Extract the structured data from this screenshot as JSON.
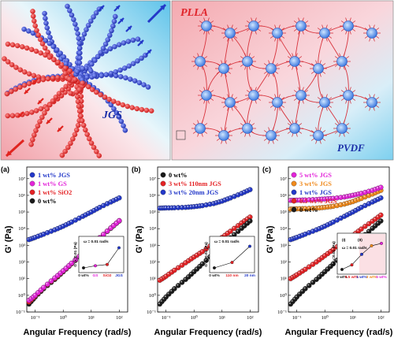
{
  "figure": {
    "schematic": {
      "left_label": "JGS",
      "right_top_label": "PLLA",
      "right_bottom_label": "PVDF"
    },
    "y_axis_title": "G' (Pa)",
    "x_axis_title": "Angular Frequency (rad/s)"
  },
  "colors": {
    "black": "#1a1a1a",
    "red": "#e42225",
    "blue": "#2338c9",
    "magenta": "#e324d9",
    "orange": "#f08a1c",
    "schematic_blue": "#2438c8",
    "schematic_red": "#e0241f"
  },
  "chart_data": [
    {
      "type": "scatter",
      "panel": "(a)",
      "x_scale": "log",
      "y_scale": "log",
      "xlabel": "Angular Frequency (rad/s)",
      "ylabel": "G' (Pa)",
      "xlim": [
        0.05,
        200
      ],
      "ylim": [
        0.1,
        50000000
      ],
      "x_ticks": [
        "10⁻¹",
        "10⁰",
        "10¹",
        "10²"
      ],
      "y_ticks": [
        "10⁻¹",
        "10⁰",
        "10¹",
        "10²",
        "10³",
        "10⁴",
        "10⁵",
        "10⁶",
        "10⁷"
      ],
      "series": [
        {
          "name": "1 wt% JGS",
          "color": "blue",
          "points": [
            [
              0.06,
              2200
            ],
            [
              0.1,
              3000
            ],
            [
              0.2,
              4700
            ],
            [
              0.5,
              8500
            ],
            [
              1,
              14000
            ],
            [
              2,
              25000
            ],
            [
              5,
              55000
            ],
            [
              10,
              100000
            ],
            [
              20,
              190000
            ],
            [
              50,
              400000
            ],
            [
              100,
              700000
            ]
          ]
        },
        {
          "name": "1 wt% GS",
          "color": "magenta",
          "points": [
            [
              0.06,
              0.5
            ],
            [
              0.1,
              1
            ],
            [
              0.2,
              3
            ],
            [
              0.5,
              11
            ],
            [
              1,
              30
            ],
            [
              2,
              85
            ],
            [
              5,
              340
            ],
            [
              10,
              1000
            ],
            [
              20,
              2900
            ],
            [
              50,
              11000
            ],
            [
              100,
              30000
            ]
          ]
        },
        {
          "name": "1 wt% SiO2",
          "color": "red",
          "points": [
            [
              0.06,
              0.4
            ],
            [
              0.1,
              0.9
            ],
            [
              0.2,
              2.8
            ],
            [
              0.5,
              10
            ],
            [
              1,
              28
            ],
            [
              2,
              80
            ],
            [
              5,
              330
            ],
            [
              10,
              980
            ],
            [
              20,
              2800
            ],
            [
              50,
              11000
            ],
            [
              100,
              30000
            ]
          ]
        },
        {
          "name": "0 wt%",
          "color": "black",
          "points": [
            [
              0.06,
              0.3
            ],
            [
              0.1,
              0.8
            ],
            [
              0.2,
              2.5
            ],
            [
              0.5,
              9
            ],
            [
              1,
              26
            ],
            [
              2,
              78
            ],
            [
              5,
              320
            ],
            [
              10,
              950
            ],
            [
              20,
              2800
            ],
            [
              50,
              10500
            ],
            [
              100,
              29000
            ]
          ]
        }
      ],
      "inset": {
        "label": "ω = 0.01 rad/s",
        "ylabel": "G'ω=0.01 (Pa)",
        "categories": [
          "0 wt%",
          "GS",
          "SiO2",
          "JGS"
        ],
        "category_colors": [
          "black",
          "magenta",
          "red",
          "blue"
        ],
        "values": [
          1,
          2,
          3,
          700
        ]
      }
    },
    {
      "type": "scatter",
      "panel": "(b)",
      "x_scale": "log",
      "y_scale": "log",
      "xlabel": "Angular Frequency (rad/s)",
      "ylabel": "G' (Pa)",
      "xlim": [
        0.05,
        200
      ],
      "ylim": [
        0.1,
        50000000
      ],
      "x_ticks": [
        "10⁻¹",
        "10⁰",
        "10¹",
        "10²"
      ],
      "y_ticks": [
        "10⁻¹",
        "10⁰",
        "10¹",
        "10²",
        "10³",
        "10⁴",
        "10⁵",
        "10⁶",
        "10⁷"
      ],
      "series": [
        {
          "name": "0 wt%",
          "color": "black",
          "points": [
            [
              0.06,
              0.3
            ],
            [
              0.1,
              0.8
            ],
            [
              0.2,
              2.5
            ],
            [
              0.5,
              9
            ],
            [
              1,
              26
            ],
            [
              2,
              78
            ],
            [
              5,
              320
            ],
            [
              10,
              950
            ],
            [
              20,
              2800
            ],
            [
              50,
              10500
            ],
            [
              100,
              29000
            ]
          ]
        },
        {
          "name": "3 wt% 110nm JGS",
          "color": "red",
          "points": [
            [
              0.06,
              8
            ],
            [
              0.1,
              14
            ],
            [
              0.2,
              32
            ],
            [
              0.5,
              90
            ],
            [
              1,
              200
            ],
            [
              2,
              420
            ],
            [
              5,
              1300
            ],
            [
              10,
              3000
            ],
            [
              20,
              7000
            ],
            [
              50,
              22000
            ],
            [
              100,
              50000
            ]
          ]
        },
        {
          "name": "3 wt% 20nm JGS",
          "color": "blue",
          "points": [
            [
              0.06,
              170000
            ],
            [
              0.1,
              175000
            ],
            [
              0.2,
              180000
            ],
            [
              0.5,
              190000
            ],
            [
              1,
              210000
            ],
            [
              2,
              240000
            ],
            [
              5,
              320000
            ],
            [
              10,
              450000
            ],
            [
              20,
              700000
            ],
            [
              50,
              1300000
            ],
            [
              100,
              2200000
            ]
          ]
        }
      ],
      "inset": {
        "label": "ω = 0.01 rad/s",
        "ylabel": "G'ω=0.01 (Pa)",
        "categories": [
          "0 wt%",
          "110 nm",
          "20 nm"
        ],
        "category_colors": [
          "black",
          "red",
          "blue"
        ],
        "values": [
          1,
          20,
          150000
        ]
      }
    },
    {
      "type": "scatter",
      "panel": "(c)",
      "x_scale": "log",
      "y_scale": "log",
      "xlabel": "Angular Frequency (rad/s)",
      "ylabel": "G' (Pa)",
      "xlim": [
        0.05,
        200
      ],
      "ylim": [
        0.1,
        50000000
      ],
      "x_ticks": [
        "10⁻¹",
        "10⁰",
        "10¹",
        "10²"
      ],
      "y_ticks": [
        "10⁻¹",
        "10⁰",
        "10¹",
        "10²",
        "10³",
        "10⁴",
        "10⁵",
        "10⁶",
        "10⁷"
      ],
      "series": [
        {
          "name": "5 wt% JGS",
          "color": "magenta",
          "points": [
            [
              0.06,
              500000
            ],
            [
              0.1,
              510000
            ],
            [
              0.2,
              530000
            ],
            [
              0.5,
              560000
            ],
            [
              1,
              600000
            ],
            [
              2,
              660000
            ],
            [
              5,
              800000
            ],
            [
              10,
              1000000
            ],
            [
              20,
              1300000
            ],
            [
              50,
              2000000
            ],
            [
              100,
              3000000
            ]
          ]
        },
        {
          "name": "3 wt% JGS",
          "color": "orange",
          "points": [
            [
              0.06,
              150000
            ],
            [
              0.1,
              155000
            ],
            [
              0.2,
              160000
            ],
            [
              0.5,
              170000
            ],
            [
              1,
              190000
            ],
            [
              2,
              220000
            ],
            [
              5,
              300000
            ],
            [
              10,
              420000
            ],
            [
              20,
              650000
            ],
            [
              50,
              1200000
            ],
            [
              100,
              2000000
            ]
          ]
        },
        {
          "name": "1 wt% JGS",
          "color": "blue",
          "points": [
            [
              0.06,
              2200
            ],
            [
              0.1,
              3000
            ],
            [
              0.2,
              4700
            ],
            [
              0.5,
              8500
            ],
            [
              1,
              14000
            ],
            [
              2,
              25000
            ],
            [
              5,
              55000
            ],
            [
              10,
              100000
            ],
            [
              20,
              190000
            ],
            [
              50,
              400000
            ],
            [
              100,
              700000
            ]
          ]
        },
        {
          "name": "0.5 wt% JGS",
          "color": "red",
          "points": [
            [
              0.06,
              10
            ],
            [
              0.1,
              17
            ],
            [
              0.2,
              36
            ],
            [
              0.5,
              100
            ],
            [
              1,
              240
            ],
            [
              2,
              560
            ],
            [
              5,
              1700
            ],
            [
              10,
              4000
            ],
            [
              20,
              9500
            ],
            [
              50,
              28000
            ],
            [
              100,
              65000
            ]
          ]
        },
        {
          "name": "0 wt%",
          "color": "black",
          "points": [
            [
              0.06,
              0.3
            ],
            [
              0.1,
              0.8
            ],
            [
              0.2,
              2.5
            ],
            [
              0.5,
              9
            ],
            [
              1,
              26
            ],
            [
              2,
              78
            ],
            [
              5,
              320
            ],
            [
              10,
              950
            ],
            [
              20,
              2800
            ],
            [
              50,
              10500
            ],
            [
              100,
              29000
            ]
          ]
        }
      ],
      "inset": {
        "label": "ω = 0.01 rad/s",
        "ylabel": "G'ω=0.01 (Pa)",
        "region_labels": [
          "(I)",
          "(II)"
        ],
        "categories": [
          "0 wt%",
          "0.5 wt%",
          "1 wt%",
          "3 wt%",
          "5 wt%"
        ],
        "category_colors": [
          "black",
          "red",
          "blue",
          "orange",
          "magenta"
        ],
        "values": [
          1,
          10,
          2000,
          150000,
          500000
        ]
      }
    }
  ]
}
